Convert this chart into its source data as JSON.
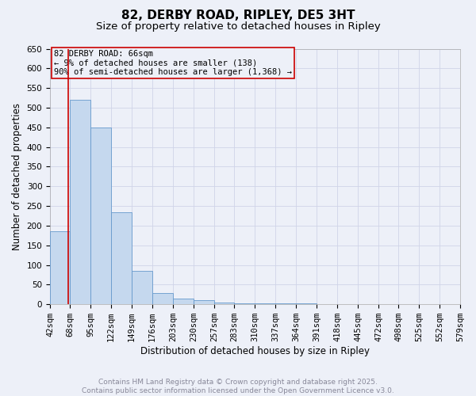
{
  "title": "82, DERBY ROAD, RIPLEY, DE5 3HT",
  "subtitle": "Size of property relative to detached houses in Ripley",
  "xlabel": "Distribution of detached houses by size in Ripley",
  "ylabel": "Number of detached properties",
  "bin_edges": [
    42,
    68,
    95,
    122,
    149,
    176,
    203,
    230,
    257,
    283,
    310,
    337,
    364,
    391,
    418,
    445,
    472,
    498,
    525,
    552,
    579
  ],
  "bar_heights": [
    185,
    520,
    450,
    235,
    85,
    28,
    15,
    10,
    5,
    3,
    2,
    2,
    2,
    1,
    1,
    1,
    1,
    1,
    1,
    1
  ],
  "bar_color": "#c5d8ee",
  "bar_edge_color": "#6699cc",
  "grid_color": "#d0d4e8",
  "background_color": "#edf0f8",
  "property_size": 66,
  "vline_color": "#cc0000",
  "ylim": [
    0,
    650
  ],
  "yticks": [
    0,
    50,
    100,
    150,
    200,
    250,
    300,
    350,
    400,
    450,
    500,
    550,
    600,
    650
  ],
  "annotation_title": "82 DERBY ROAD: 66sqm",
  "annotation_line2": "← 9% of detached houses are smaller (138)",
  "annotation_line3": "90% of semi-detached houses are larger (1,368) →",
  "annotation_box_color": "#cc0000",
  "footer_line1": "Contains HM Land Registry data © Crown copyright and database right 2025.",
  "footer_line2": "Contains public sector information licensed under the Open Government Licence v3.0.",
  "footer_color": "#888899",
  "title_fontsize": 11,
  "subtitle_fontsize": 9.5,
  "axis_label_fontsize": 8.5,
  "tick_fontsize": 7.5,
  "annotation_fontsize": 7.5,
  "footer_fontsize": 6.5
}
